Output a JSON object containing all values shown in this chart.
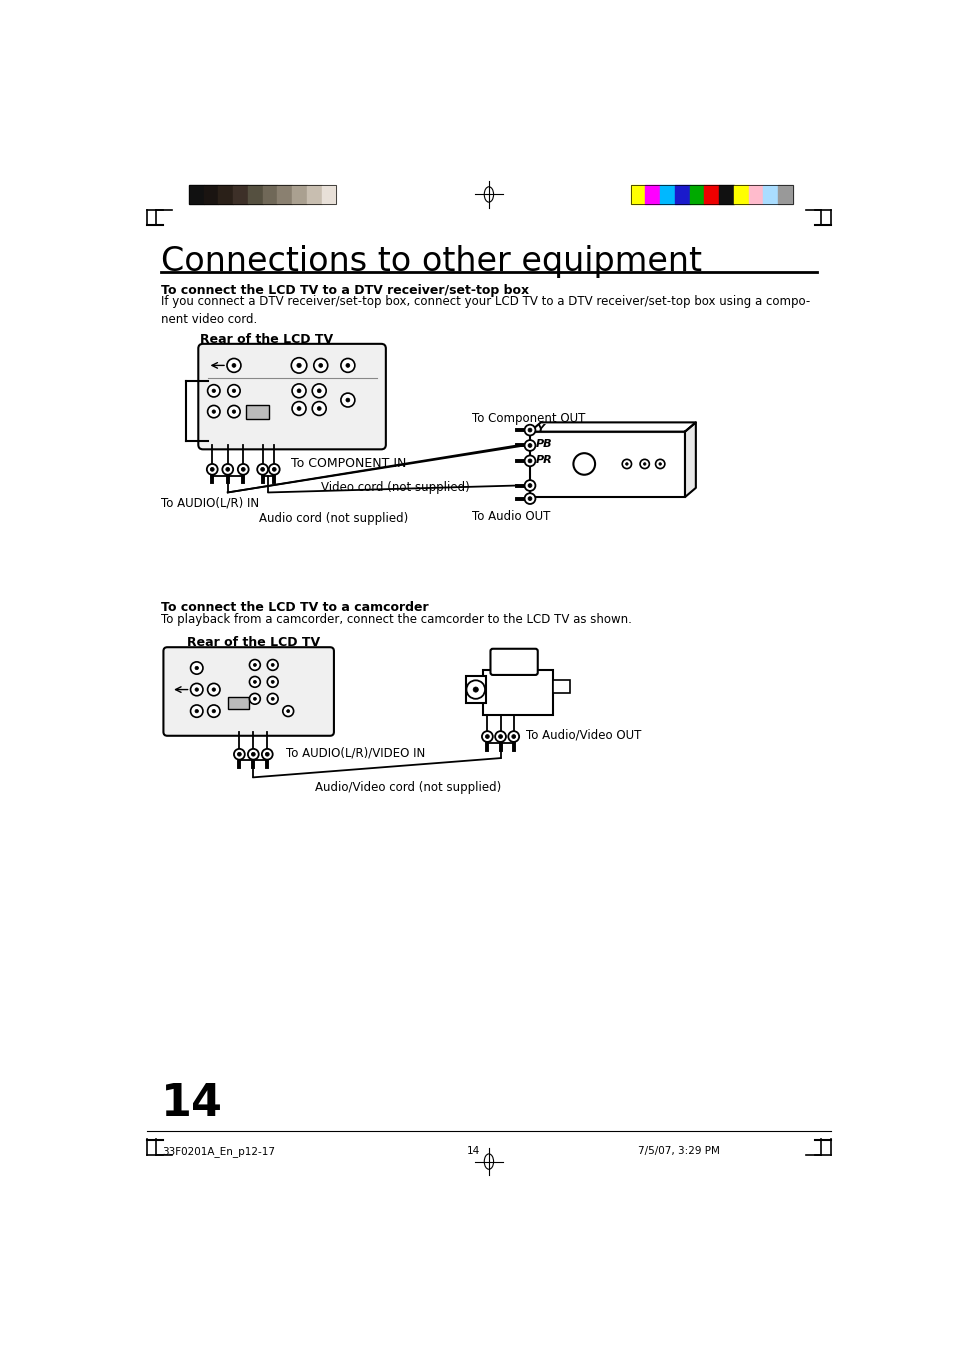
{
  "bg_color": "#ffffff",
  "title": "Connections to other equipment",
  "section1_bold": "To connect the LCD TV to a DTV receiver/set-top box",
  "section1_text": "If you connect a DTV receiver/set-top box, connect your LCD TV to a DTV receiver/set-top box using a compo-\nnent video cord.",
  "rear_label1": "Rear of the LCD TV",
  "label_component_in": "To COMPONENT IN",
  "label_component_out": "To Component OUT",
  "label_video_cord": "Video cord (not supplied)",
  "label_audio_lr_in": "To AUDIO(L/R) IN",
  "label_audio_cord": "Audio cord (not supplied)",
  "label_audio_out": "To Audio OUT",
  "section2_bold": "To connect the LCD TV to a camcorder",
  "section2_text": "To playback from a camcorder, connect the camcorder to the LCD TV as shown.",
  "rear_label2": "Rear of the LCD TV",
  "label_audio_video_in": "To AUDIO(L/R)/VIDEO IN",
  "label_audio_video_out": "To Audio/Video OUT",
  "label_audio_video_cord": "Audio/Video cord (not supplied)",
  "page_number": "14",
  "footer_left": "33F0201A_En_p12-17",
  "footer_center": "14",
  "footer_right": "7/5/07, 3:29 PM",
  "color_bar_left": [
    "#111111",
    "#1a1411",
    "#2a2018",
    "#3d3028",
    "#555040",
    "#706858",
    "#8a8070",
    "#aaa090",
    "#c8beb0",
    "#e8e0d8"
  ],
  "color_bar_right": [
    "#ffff00",
    "#ff00ff",
    "#00b8ff",
    "#1a1acc",
    "#00aa00",
    "#ee0000",
    "#111111",
    "#ffff00",
    "#ffbbcc",
    "#aaddff",
    "#999999"
  ]
}
